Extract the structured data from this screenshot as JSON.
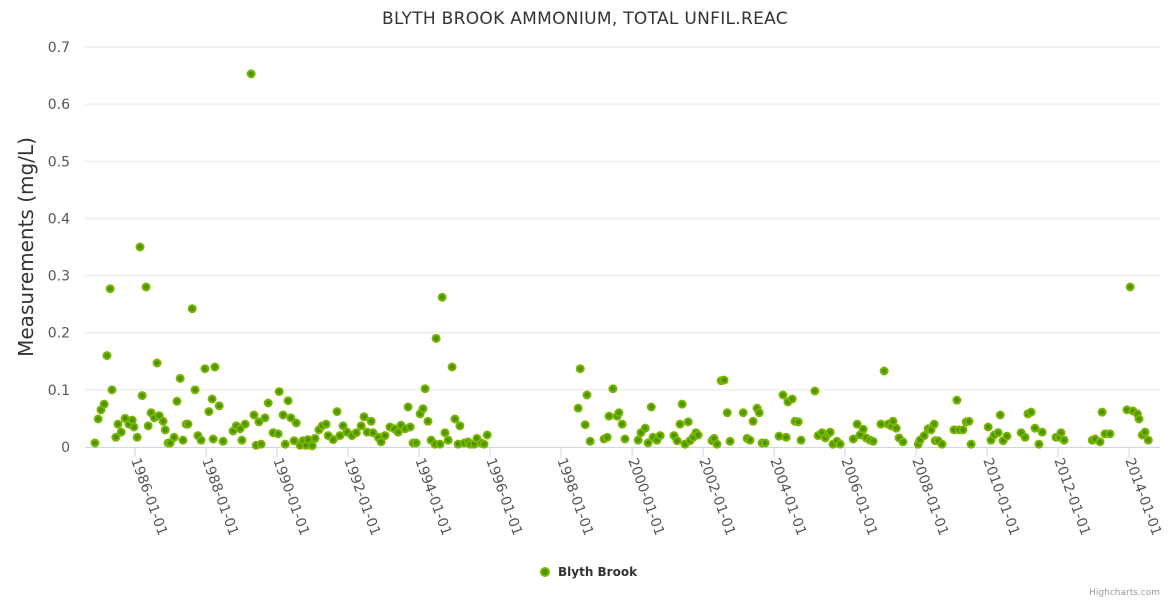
{
  "chart_data": {
    "type": "scatter",
    "title": "BLYTH BROOK AMMONIUM, TOTAL UNFIL.REAC",
    "xlabel": "",
    "ylabel": "Measurements (mg/L)",
    "xlim": [
      1984.59,
      2014.87
    ],
    "ylim": [
      0,
      0.7
    ],
    "yticks": [
      0,
      0.1,
      0.2,
      0.3,
      0.4,
      0.5,
      0.6,
      0.7
    ],
    "ytick_labels": [
      "0",
      "0.1",
      "0.2",
      "0.3",
      "0.4",
      "0.5",
      "0.6",
      "0.7"
    ],
    "xticks": [
      1986,
      1988,
      1990,
      1992,
      1994,
      1996,
      1998,
      2000,
      2002,
      2004,
      2006,
      2008,
      2010,
      2012,
      2014
    ],
    "xtick_labels": [
      "1986-01-01",
      "1988-01-01",
      "1990-01-01",
      "1992-01-01",
      "1994-01-01",
      "1996-01-01",
      "1998-01-01",
      "2000-01-01",
      "2002-01-01",
      "2004-01-01",
      "2006-01-01",
      "2008-01-01",
      "2010-01-01",
      "2012-01-01",
      "2014-01-01"
    ],
    "grid": true,
    "legend_position": "bottom-center",
    "series": [
      {
        "name": "Blyth Brook",
        "color": "#7cb500",
        "points": [
          [
            1984.87,
            0.007
          ],
          [
            1984.96,
            0.049
          ],
          [
            1985.04,
            0.065
          ],
          [
            1985.13,
            0.075
          ],
          [
            1985.21,
            0.16
          ],
          [
            1985.3,
            0.277
          ],
          [
            1985.35,
            0.1
          ],
          [
            1985.46,
            0.017
          ],
          [
            1985.52,
            0.04
          ],
          [
            1985.61,
            0.026
          ],
          [
            1985.72,
            0.05
          ],
          [
            1985.83,
            0.04
          ],
          [
            1985.92,
            0.047
          ],
          [
            1985.97,
            0.035
          ],
          [
            1986.06,
            0.017
          ],
          [
            1986.14,
            0.35
          ],
          [
            1986.2,
            0.09
          ],
          [
            1986.31,
            0.28
          ],
          [
            1986.37,
            0.037
          ],
          [
            1986.45,
            0.06
          ],
          [
            1986.54,
            0.051
          ],
          [
            1986.62,
            0.147
          ],
          [
            1986.68,
            0.055
          ],
          [
            1986.79,
            0.045
          ],
          [
            1986.85,
            0.03
          ],
          [
            1986.93,
            0.007
          ],
          [
            1986.99,
            0.007
          ],
          [
            1987.1,
            0.017
          ],
          [
            1987.18,
            0.08
          ],
          [
            1987.27,
            0.12
          ],
          [
            1987.35,
            0.012
          ],
          [
            1987.44,
            0.04
          ],
          [
            1987.49,
            0.04
          ],
          [
            1987.61,
            0.242
          ],
          [
            1987.69,
            0.1
          ],
          [
            1987.77,
            0.02
          ],
          [
            1987.86,
            0.012
          ],
          [
            1987.97,
            0.137
          ],
          [
            1988.08,
            0.062
          ],
          [
            1988.17,
            0.084
          ],
          [
            1988.2,
            0.014
          ],
          [
            1988.25,
            0.14
          ],
          [
            1988.37,
            0.072
          ],
          [
            1988.48,
            0.01
          ],
          [
            1988.76,
            0.028
          ],
          [
            1988.85,
            0.037
          ],
          [
            1988.96,
            0.032
          ],
          [
            1989.01,
            0.012
          ],
          [
            1989.1,
            0.04
          ],
          [
            1989.27,
            0.653
          ],
          [
            1989.35,
            0.056
          ],
          [
            1989.41,
            0.003
          ],
          [
            1989.49,
            0.044
          ],
          [
            1989.55,
            0.005
          ],
          [
            1989.66,
            0.051
          ],
          [
            1989.75,
            0.077
          ],
          [
            1989.89,
            0.025
          ],
          [
            1990.03,
            0.023
          ],
          [
            1990.06,
            0.097
          ],
          [
            1990.17,
            0.056
          ],
          [
            1990.23,
            0.005
          ],
          [
            1990.31,
            0.081
          ],
          [
            1990.39,
            0.051
          ],
          [
            1990.48,
            0.011
          ],
          [
            1990.54,
            0.042
          ],
          [
            1990.65,
            0.003
          ],
          [
            1990.73,
            0.011
          ],
          [
            1990.82,
            0.003
          ],
          [
            1990.87,
            0.013
          ],
          [
            1990.99,
            0.002
          ],
          [
            1991.07,
            0.015
          ],
          [
            1991.18,
            0.03
          ],
          [
            1991.27,
            0.037
          ],
          [
            1991.38,
            0.04
          ],
          [
            1991.44,
            0.02
          ],
          [
            1991.58,
            0.013
          ],
          [
            1991.69,
            0.062
          ],
          [
            1991.77,
            0.02
          ],
          [
            1991.86,
            0.037
          ],
          [
            1991.97,
            0.026
          ],
          [
            1992.11,
            0.02
          ],
          [
            1992.23,
            0.025
          ],
          [
            1992.37,
            0.037
          ],
          [
            1992.45,
            0.053
          ],
          [
            1992.54,
            0.026
          ],
          [
            1992.65,
            0.045
          ],
          [
            1992.7,
            0.025
          ],
          [
            1992.85,
            0.017
          ],
          [
            1992.93,
            0.009
          ],
          [
            1993.04,
            0.02
          ],
          [
            1993.18,
            0.035
          ],
          [
            1993.3,
            0.032
          ],
          [
            1993.41,
            0.026
          ],
          [
            1993.49,
            0.038
          ],
          [
            1993.61,
            0.032
          ],
          [
            1993.69,
            0.07
          ],
          [
            1993.75,
            0.035
          ],
          [
            1993.83,
            0.007
          ],
          [
            1993.92,
            0.007
          ],
          [
            1994.03,
            0.058
          ],
          [
            1994.11,
            0.067
          ],
          [
            1994.17,
            0.102
          ],
          [
            1994.25,
            0.045
          ],
          [
            1994.34,
            0.012
          ],
          [
            1994.45,
            0.005
          ],
          [
            1994.48,
            0.19
          ],
          [
            1994.59,
            0.005
          ],
          [
            1994.65,
            0.262
          ],
          [
            1994.73,
            0.025
          ],
          [
            1994.82,
            0.012
          ],
          [
            1994.93,
            0.14
          ],
          [
            1995.01,
            0.049
          ],
          [
            1995.1,
            0.005
          ],
          [
            1995.15,
            0.037
          ],
          [
            1995.27,
            0.007
          ],
          [
            1995.38,
            0.009
          ],
          [
            1995.44,
            0.005
          ],
          [
            1995.55,
            0.005
          ],
          [
            1995.63,
            0.015
          ],
          [
            1995.75,
            0.007
          ],
          [
            1995.83,
            0.005
          ],
          [
            1995.92,
            0.021
          ],
          [
            1998.48,
            0.068
          ],
          [
            1998.54,
            0.137
          ],
          [
            1998.68,
            0.039
          ],
          [
            1998.73,
            0.091
          ],
          [
            1998.82,
            0.01
          ],
          [
            1999.21,
            0.014
          ],
          [
            1999.3,
            0.017
          ],
          [
            1999.35,
            0.054
          ],
          [
            1999.46,
            0.102
          ],
          [
            1999.58,
            0.054
          ],
          [
            1999.63,
            0.06
          ],
          [
            1999.72,
            0.04
          ],
          [
            1999.8,
            0.014
          ],
          [
            2000.17,
            0.012
          ],
          [
            2000.25,
            0.025
          ],
          [
            2000.37,
            0.033
          ],
          [
            2000.45,
            0.007
          ],
          [
            2000.54,
            0.07
          ],
          [
            2000.59,
            0.017
          ],
          [
            2000.7,
            0.012
          ],
          [
            2000.79,
            0.02
          ],
          [
            2001.18,
            0.02
          ],
          [
            2001.27,
            0.011
          ],
          [
            2001.35,
            0.04
          ],
          [
            2001.41,
            0.075
          ],
          [
            2001.49,
            0.005
          ],
          [
            2001.58,
            0.044
          ],
          [
            2001.63,
            0.011
          ],
          [
            2001.72,
            0.017
          ],
          [
            2001.8,
            0.025
          ],
          [
            2001.86,
            0.021
          ],
          [
            2002.25,
            0.011
          ],
          [
            2002.31,
            0.015
          ],
          [
            2002.39,
            0.005
          ],
          [
            2002.51,
            0.116
          ],
          [
            2002.59,
            0.117
          ],
          [
            2002.68,
            0.06
          ],
          [
            2002.76,
            0.01
          ],
          [
            2003.13,
            0.06
          ],
          [
            2003.24,
            0.015
          ],
          [
            2003.32,
            0.012
          ],
          [
            2003.41,
            0.045
          ],
          [
            2003.52,
            0.068
          ],
          [
            2003.58,
            0.06
          ],
          [
            2003.66,
            0.007
          ],
          [
            2003.75,
            0.007
          ],
          [
            2004.14,
            0.019
          ],
          [
            2004.25,
            0.091
          ],
          [
            2004.34,
            0.017
          ],
          [
            2004.39,
            0.079
          ],
          [
            2004.51,
            0.084
          ],
          [
            2004.59,
            0.045
          ],
          [
            2004.68,
            0.044
          ],
          [
            2004.76,
            0.012
          ],
          [
            2005.15,
            0.098
          ],
          [
            2005.24,
            0.02
          ],
          [
            2005.35,
            0.025
          ],
          [
            2005.44,
            0.016
          ],
          [
            2005.52,
            0.023
          ],
          [
            2005.58,
            0.026
          ],
          [
            2005.66,
            0.005
          ],
          [
            2005.77,
            0.01
          ],
          [
            2005.86,
            0.005
          ],
          [
            2006.23,
            0.014
          ],
          [
            2006.34,
            0.04
          ],
          [
            2006.42,
            0.021
          ],
          [
            2006.51,
            0.031
          ],
          [
            2006.59,
            0.016
          ],
          [
            2006.7,
            0.012
          ],
          [
            2006.79,
            0.01
          ],
          [
            2007.01,
            0.04
          ],
          [
            2007.1,
            0.133
          ],
          [
            2007.21,
            0.04
          ],
          [
            2007.3,
            0.037
          ],
          [
            2007.35,
            0.045
          ],
          [
            2007.44,
            0.033
          ],
          [
            2007.52,
            0.016
          ],
          [
            2007.63,
            0.009
          ],
          [
            2008.06,
            0.005
          ],
          [
            2008.11,
            0.012
          ],
          [
            2008.23,
            0.02
          ],
          [
            2008.34,
            0.032
          ],
          [
            2008.42,
            0.03
          ],
          [
            2008.51,
            0.04
          ],
          [
            2008.54,
            0.011
          ],
          [
            2008.62,
            0.011
          ],
          [
            2008.73,
            0.005
          ],
          [
            2009.07,
            0.03
          ],
          [
            2009.15,
            0.082
          ],
          [
            2009.21,
            0.03
          ],
          [
            2009.32,
            0.03
          ],
          [
            2009.41,
            0.044
          ],
          [
            2009.49,
            0.045
          ],
          [
            2009.55,
            0.005
          ],
          [
            2010.03,
            0.035
          ],
          [
            2010.11,
            0.012
          ],
          [
            2010.2,
            0.021
          ],
          [
            2010.31,
            0.025
          ],
          [
            2010.37,
            0.056
          ],
          [
            2010.45,
            0.011
          ],
          [
            2010.56,
            0.019
          ],
          [
            2010.96,
            0.025
          ],
          [
            2011.07,
            0.017
          ],
          [
            2011.15,
            0.058
          ],
          [
            2011.24,
            0.061
          ],
          [
            2011.35,
            0.033
          ],
          [
            2011.46,
            0.005
          ],
          [
            2011.55,
            0.026
          ],
          [
            2011.94,
            0.017
          ],
          [
            2012.03,
            0.017
          ],
          [
            2012.08,
            0.025
          ],
          [
            2012.17,
            0.012
          ],
          [
            2012.96,
            0.012
          ],
          [
            2013.04,
            0.014
          ],
          [
            2013.18,
            0.009
          ],
          [
            2013.24,
            0.061
          ],
          [
            2013.32,
            0.023
          ],
          [
            2013.46,
            0.023
          ],
          [
            2013.94,
            0.065
          ],
          [
            2014.03,
            0.28
          ],
          [
            2014.11,
            0.063
          ],
          [
            2014.23,
            0.058
          ],
          [
            2014.28,
            0.049
          ],
          [
            2014.37,
            0.021
          ],
          [
            2014.45,
            0.026
          ],
          [
            2014.54,
            0.012
          ]
        ]
      }
    ]
  },
  "legend": {
    "label": "Blyth Brook"
  },
  "credits": "Highcharts.com"
}
